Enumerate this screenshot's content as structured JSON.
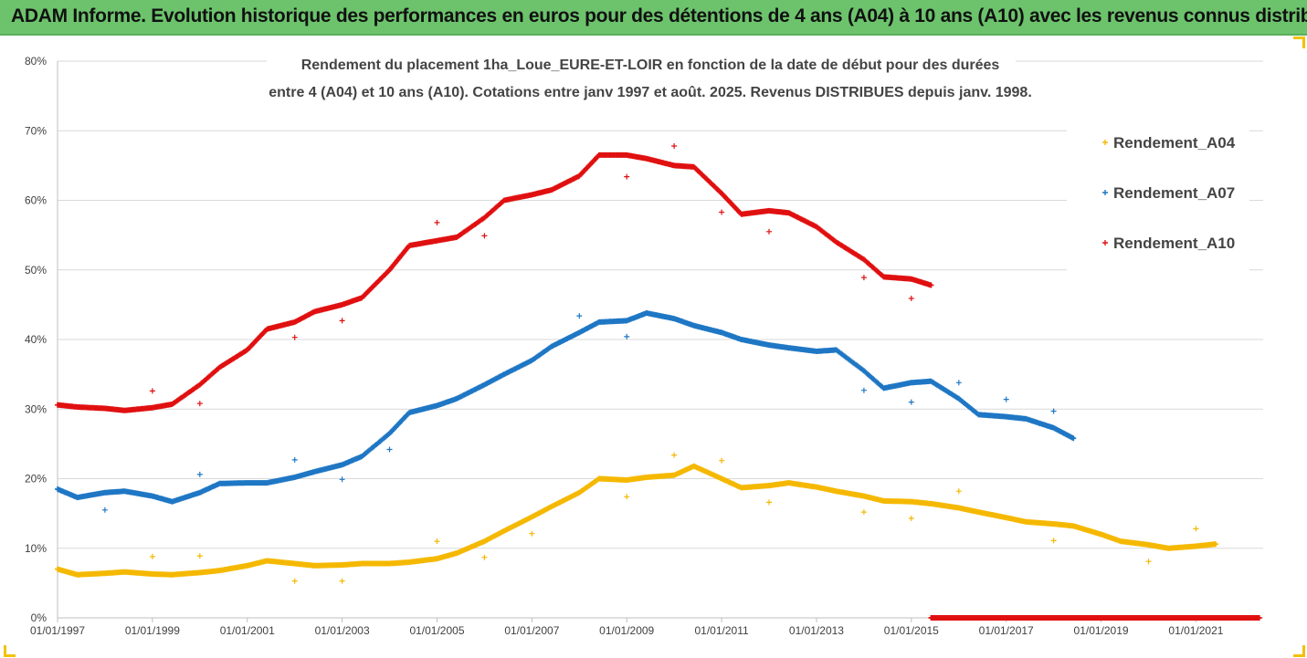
{
  "banner": {
    "title": "ADAM Informe. Evolution historique des performances en euros pour des détentions de 4 ans (A04) à 10 ans (A10) avec les revenus connus distribués",
    "color": "#6cc36c"
  },
  "chart_data": {
    "type": "scatter",
    "title_line1": "Rendement du placement 1ha_Loue_EURE-ET-LOIR en fonction de la date de début pour des durées",
    "title_line2": "entre 4 (A04) et 10 ans (A10). Cotations entre janv 1997 et août. 2025. Revenus DISTRIBUES depuis janv. 1998.",
    "xlabel": "",
    "ylabel": "",
    "xlim": [
      "01/01/1997",
      "01/06/2022"
    ],
    "ylim": [
      0,
      80
    ],
    "y_unit": "%",
    "grid": "horizontal",
    "legend_position": "right",
    "x_ticks": [
      "01/01/1997",
      "01/01/1999",
      "01/01/2001",
      "01/01/2003",
      "01/01/2005",
      "01/01/2007",
      "01/01/2009",
      "01/01/2011",
      "01/01/2013",
      "01/01/2015",
      "01/01/2017",
      "01/01/2019",
      "01/01/2021"
    ],
    "y_ticks": [
      "0%",
      "10%",
      "20%",
      "30%",
      "40%",
      "50%",
      "60%",
      "70%",
      "80%"
    ],
    "series": [
      {
        "name": "Rendement_A04",
        "color": "#f5b800",
        "points": [
          [
            "1997-01",
            7.0
          ],
          [
            "1997-06",
            6.2
          ],
          [
            "1998-01",
            6.4
          ],
          [
            "1998-06",
            6.6
          ],
          [
            "1999-01",
            6.3
          ],
          [
            "1999-06",
            6.2
          ],
          [
            "2000-01",
            6.5
          ],
          [
            "2000-06",
            6.8
          ],
          [
            "2001-01",
            7.5
          ],
          [
            "2001-06",
            8.2
          ],
          [
            "2002-01",
            7.8
          ],
          [
            "2002-06",
            7.5
          ],
          [
            "2003-01",
            7.6
          ],
          [
            "2003-06",
            7.8
          ],
          [
            "2004-01",
            7.8
          ],
          [
            "2004-06",
            8.0
          ],
          [
            "2005-01",
            8.5
          ],
          [
            "2005-06",
            9.3
          ],
          [
            "2006-01",
            11.0
          ],
          [
            "2006-06",
            12.5
          ],
          [
            "2007-01",
            14.5
          ],
          [
            "2007-06",
            16.0
          ],
          [
            "2008-01",
            18.0
          ],
          [
            "2008-06",
            20.0
          ],
          [
            "2009-01",
            19.8
          ],
          [
            "2009-06",
            20.2
          ],
          [
            "2010-01",
            20.5
          ],
          [
            "2010-06",
            21.8
          ],
          [
            "2011-01",
            20.0
          ],
          [
            "2011-06",
            18.7
          ],
          [
            "2012-01",
            19.0
          ],
          [
            "2012-06",
            19.4
          ],
          [
            "2013-01",
            18.8
          ],
          [
            "2013-06",
            18.2
          ],
          [
            "2014-01",
            17.5
          ],
          [
            "2014-06",
            16.8
          ],
          [
            "2015-01",
            16.7
          ],
          [
            "2015-06",
            16.4
          ],
          [
            "2016-01",
            15.8
          ],
          [
            "2016-06",
            15.2
          ],
          [
            "2017-01",
            14.4
          ],
          [
            "2017-06",
            13.8
          ],
          [
            "2018-01",
            13.5
          ],
          [
            "2018-06",
            13.2
          ],
          [
            "2019-01",
            12.0
          ],
          [
            "2019-06",
            11.0
          ],
          [
            "2020-01",
            10.5
          ],
          [
            "2020-06",
            10.0
          ],
          [
            "2021-01",
            10.3
          ],
          [
            "2021-06",
            10.6
          ]
        ],
        "outliers": [
          [
            "1999-01",
            8.8
          ],
          [
            "2000-01",
            8.9
          ],
          [
            "2002-01",
            5.3
          ],
          [
            "2003-01",
            5.3
          ],
          [
            "2005-01",
            11.0
          ],
          [
            "2006-01",
            8.7
          ],
          [
            "2007-01",
            12.1
          ],
          [
            "2009-01",
            17.4
          ],
          [
            "2010-01",
            23.4
          ],
          [
            "2011-01",
            22.6
          ],
          [
            "2012-01",
            16.6
          ],
          [
            "2014-01",
            15.2
          ],
          [
            "2015-01",
            14.3
          ],
          [
            "2016-01",
            18.2
          ],
          [
            "2018-01",
            11.1
          ],
          [
            "2020-01",
            8.1
          ],
          [
            "2021-01",
            12.8
          ]
        ]
      },
      {
        "name": "Rendement_A07",
        "color": "#1f77c4",
        "points": [
          [
            "1997-01",
            18.5
          ],
          [
            "1997-06",
            17.3
          ],
          [
            "1998-01",
            18.0
          ],
          [
            "1998-06",
            18.2
          ],
          [
            "1999-01",
            17.5
          ],
          [
            "1999-06",
            16.7
          ],
          [
            "2000-01",
            18.0
          ],
          [
            "2000-06",
            19.3
          ],
          [
            "2001-01",
            19.4
          ],
          [
            "2001-06",
            19.4
          ],
          [
            "2002-01",
            20.2
          ],
          [
            "2002-06",
            21.0
          ],
          [
            "2003-01",
            22.0
          ],
          [
            "2003-06",
            23.2
          ],
          [
            "2004-01",
            26.5
          ],
          [
            "2004-06",
            29.5
          ],
          [
            "2005-01",
            30.5
          ],
          [
            "2005-06",
            31.5
          ],
          [
            "2006-01",
            33.5
          ],
          [
            "2006-06",
            35.0
          ],
          [
            "2007-01",
            37.0
          ],
          [
            "2007-06",
            39.0
          ],
          [
            "2008-01",
            41.0
          ],
          [
            "2008-06",
            42.5
          ],
          [
            "2009-01",
            42.7
          ],
          [
            "2009-06",
            43.8
          ],
          [
            "2010-01",
            43.0
          ],
          [
            "2010-06",
            42.0
          ],
          [
            "2011-01",
            41.0
          ],
          [
            "2011-06",
            40.0
          ],
          [
            "2012-01",
            39.2
          ],
          [
            "2012-06",
            38.8
          ],
          [
            "2013-01",
            38.3
          ],
          [
            "2013-06",
            38.5
          ],
          [
            "2014-01",
            35.5
          ],
          [
            "2014-06",
            33.0
          ],
          [
            "2015-01",
            33.8
          ],
          [
            "2015-06",
            34.0
          ],
          [
            "2016-01",
            31.5
          ],
          [
            "2016-06",
            29.2
          ],
          [
            "2017-01",
            28.9
          ],
          [
            "2017-06",
            28.6
          ],
          [
            "2018-01",
            27.3
          ],
          [
            "2018-06",
            25.8
          ]
        ],
        "outliers": [
          [
            "1998-01",
            15.5
          ],
          [
            "2000-01",
            20.6
          ],
          [
            "2002-01",
            22.7
          ],
          [
            "2003-01",
            19.9
          ],
          [
            "2004-01",
            24.2
          ],
          [
            "2008-01",
            43.4
          ],
          [
            "2009-01",
            40.4
          ],
          [
            "2014-01",
            32.7
          ],
          [
            "2015-01",
            31.0
          ],
          [
            "2016-01",
            33.8
          ],
          [
            "2017-01",
            31.4
          ],
          [
            "2018-01",
            29.7
          ]
        ]
      },
      {
        "name": "Rendement_A10",
        "color": "#e01010",
        "points": [
          [
            "1997-01",
            30.6
          ],
          [
            "1997-06",
            30.3
          ],
          [
            "1998-01",
            30.1
          ],
          [
            "1998-06",
            29.8
          ],
          [
            "1999-01",
            30.2
          ],
          [
            "1999-06",
            30.7
          ],
          [
            "2000-01",
            33.5
          ],
          [
            "2000-06",
            36.0
          ],
          [
            "2001-01",
            38.5
          ],
          [
            "2001-06",
            41.5
          ],
          [
            "2002-01",
            42.5
          ],
          [
            "2002-06",
            44.0
          ],
          [
            "2003-01",
            45.0
          ],
          [
            "2003-06",
            46.0
          ],
          [
            "2004-01",
            50.0
          ],
          [
            "2004-06",
            53.5
          ],
          [
            "2005-01",
            54.2
          ],
          [
            "2005-06",
            54.7
          ],
          [
            "2006-01",
            57.5
          ],
          [
            "2006-06",
            60.0
          ],
          [
            "2007-01",
            60.8
          ],
          [
            "2007-06",
            61.5
          ],
          [
            "2008-01",
            63.5
          ],
          [
            "2008-06",
            66.5
          ],
          [
            "2009-01",
            66.5
          ],
          [
            "2009-06",
            66.0
          ],
          [
            "2010-01",
            65.0
          ],
          [
            "2010-06",
            64.8
          ],
          [
            "2011-01",
            61.0
          ],
          [
            "2011-06",
            58.0
          ],
          [
            "2012-01",
            58.5
          ],
          [
            "2012-06",
            58.2
          ],
          [
            "2013-01",
            56.2
          ],
          [
            "2013-06",
            54.0
          ],
          [
            "2014-01",
            51.5
          ],
          [
            "2014-06",
            49.0
          ],
          [
            "2015-01",
            48.7
          ],
          [
            "2015-06",
            47.8
          ]
        ],
        "outliers": [
          [
            "1999-01",
            32.6
          ],
          [
            "2000-01",
            30.8
          ],
          [
            "2002-01",
            40.3
          ],
          [
            "2003-01",
            42.7
          ],
          [
            "2005-01",
            56.8
          ],
          [
            "2006-01",
            54.9
          ],
          [
            "2009-01",
            63.4
          ],
          [
            "2010-01",
            67.8
          ],
          [
            "2011-01",
            58.3
          ],
          [
            "2012-01",
            55.5
          ],
          [
            "2014-01",
            48.9
          ],
          [
            "2015-01",
            45.9
          ]
        ],
        "zero_range": [
          "2015-06",
          "2022-05"
        ]
      }
    ]
  }
}
